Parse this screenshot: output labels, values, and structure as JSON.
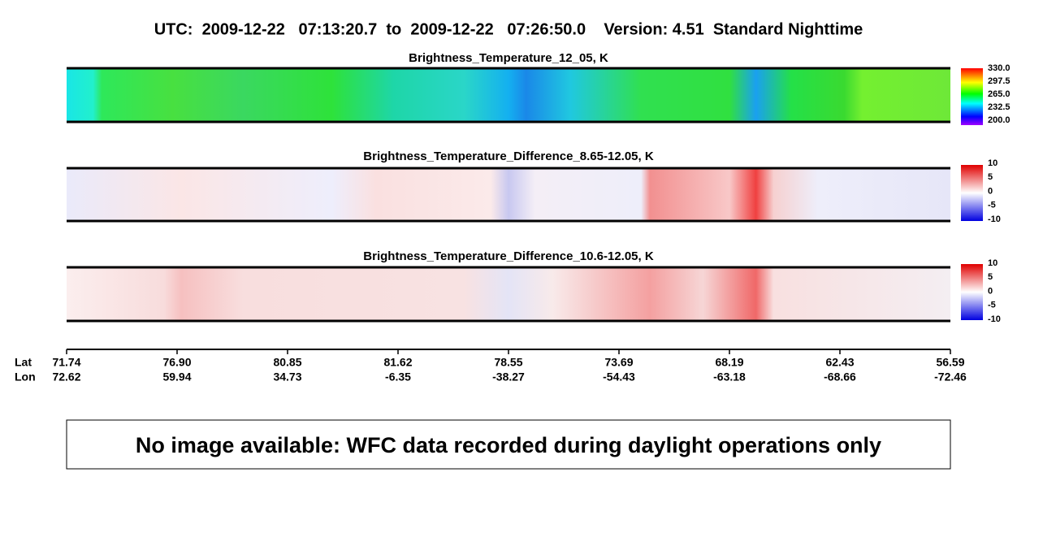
{
  "header": {
    "title": "UTC:  2009-12-22   07:13:20.7  to  2009-12-22   07:26:50.0    Version: 4.51  Standard Nighttime"
  },
  "panels": [
    {
      "title": "Brightness_Temperature_12_05, K",
      "colorbar_labels": [
        "330.0",
        "297.5",
        "265.0",
        "232.5",
        "200.0"
      ]
    },
    {
      "title": "Brightness_Temperature_Difference_8.65-12.05, K",
      "colorbar_labels": [
        "10",
        "5",
        "0",
        "-5",
        "-10"
      ]
    },
    {
      "title": "Brightness_Temperature_Difference_10.6-12.05, K",
      "colorbar_labels": [
        "10",
        "5",
        "0",
        "-5",
        "-10"
      ]
    }
  ],
  "axis": {
    "lat_label": "Lat",
    "lon_label": "Lon",
    "lat": [
      "71.74",
      "76.90",
      "80.85",
      "81.62",
      "78.55",
      "73.69",
      "68.19",
      "62.43",
      "56.59"
    ],
    "lon": [
      "72.62",
      "59.94",
      "34.73",
      "-6.35",
      "-38.27",
      "-54.43",
      "-63.18",
      "-68.66",
      "-72.46"
    ]
  },
  "message": "No image available: WFC data recorded during daylight operations only"
}
